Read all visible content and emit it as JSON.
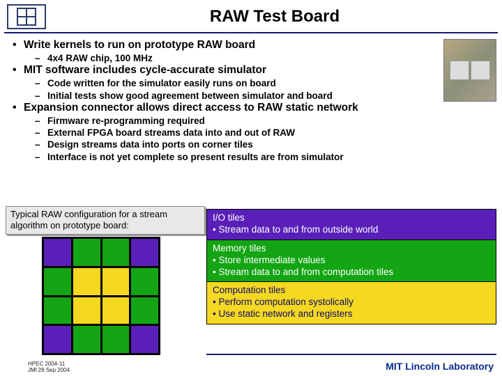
{
  "title": "RAW Test Board",
  "bullets": [
    {
      "text": "Write kernels to run on prototype RAW board",
      "sub": [
        "4x4 RAW chip, 100 MHz"
      ]
    },
    {
      "text": "MIT software includes cycle-accurate simulator",
      "sub": [
        "Code written for the simulator easily runs on board",
        "Initial tests show good agreement between simulator and board"
      ]
    },
    {
      "text": "Expansion connector allows direct access to RAW static network",
      "sub": [
        "Firmware re-programming required",
        "External FPGA board streams data into and out of RAW",
        "Design streams data into ports on corner tiles",
        "Interface is not yet complete so present results are from simulator"
      ]
    }
  ],
  "caption": "Typical RAW configuration for a stream algorithm on prototype board:",
  "tile_colors": {
    "io": "#5a1fb8",
    "memory": "#14a514",
    "computation": "#f5d820"
  },
  "grid_layout": [
    [
      "io",
      "memory",
      "memory",
      "io"
    ],
    [
      "memory",
      "computation",
      "computation",
      "memory"
    ],
    [
      "memory",
      "computation",
      "computation",
      "memory"
    ],
    [
      "io",
      "memory",
      "memory",
      "io"
    ]
  ],
  "legend": [
    {
      "bg_key": "io",
      "title": "I/O tiles",
      "items": [
        "Stream data to and from outside world"
      ]
    },
    {
      "bg_key": "memory",
      "title": "Memory tiles",
      "items": [
        "Store intermediate values",
        "Stream data to and from computation tiles"
      ]
    },
    {
      "bg_key": "computation",
      "title": "Computation tiles",
      "text_color": "#0a0a6a",
      "items": [
        "Perform computation systolically",
        "Use static network and registers"
      ]
    }
  ],
  "footer": {
    "left_line1": "HPEC 2004-11",
    "left_line2": "JMl 28 Sep 2004",
    "right": "MIT Lincoln Laboratory"
  }
}
